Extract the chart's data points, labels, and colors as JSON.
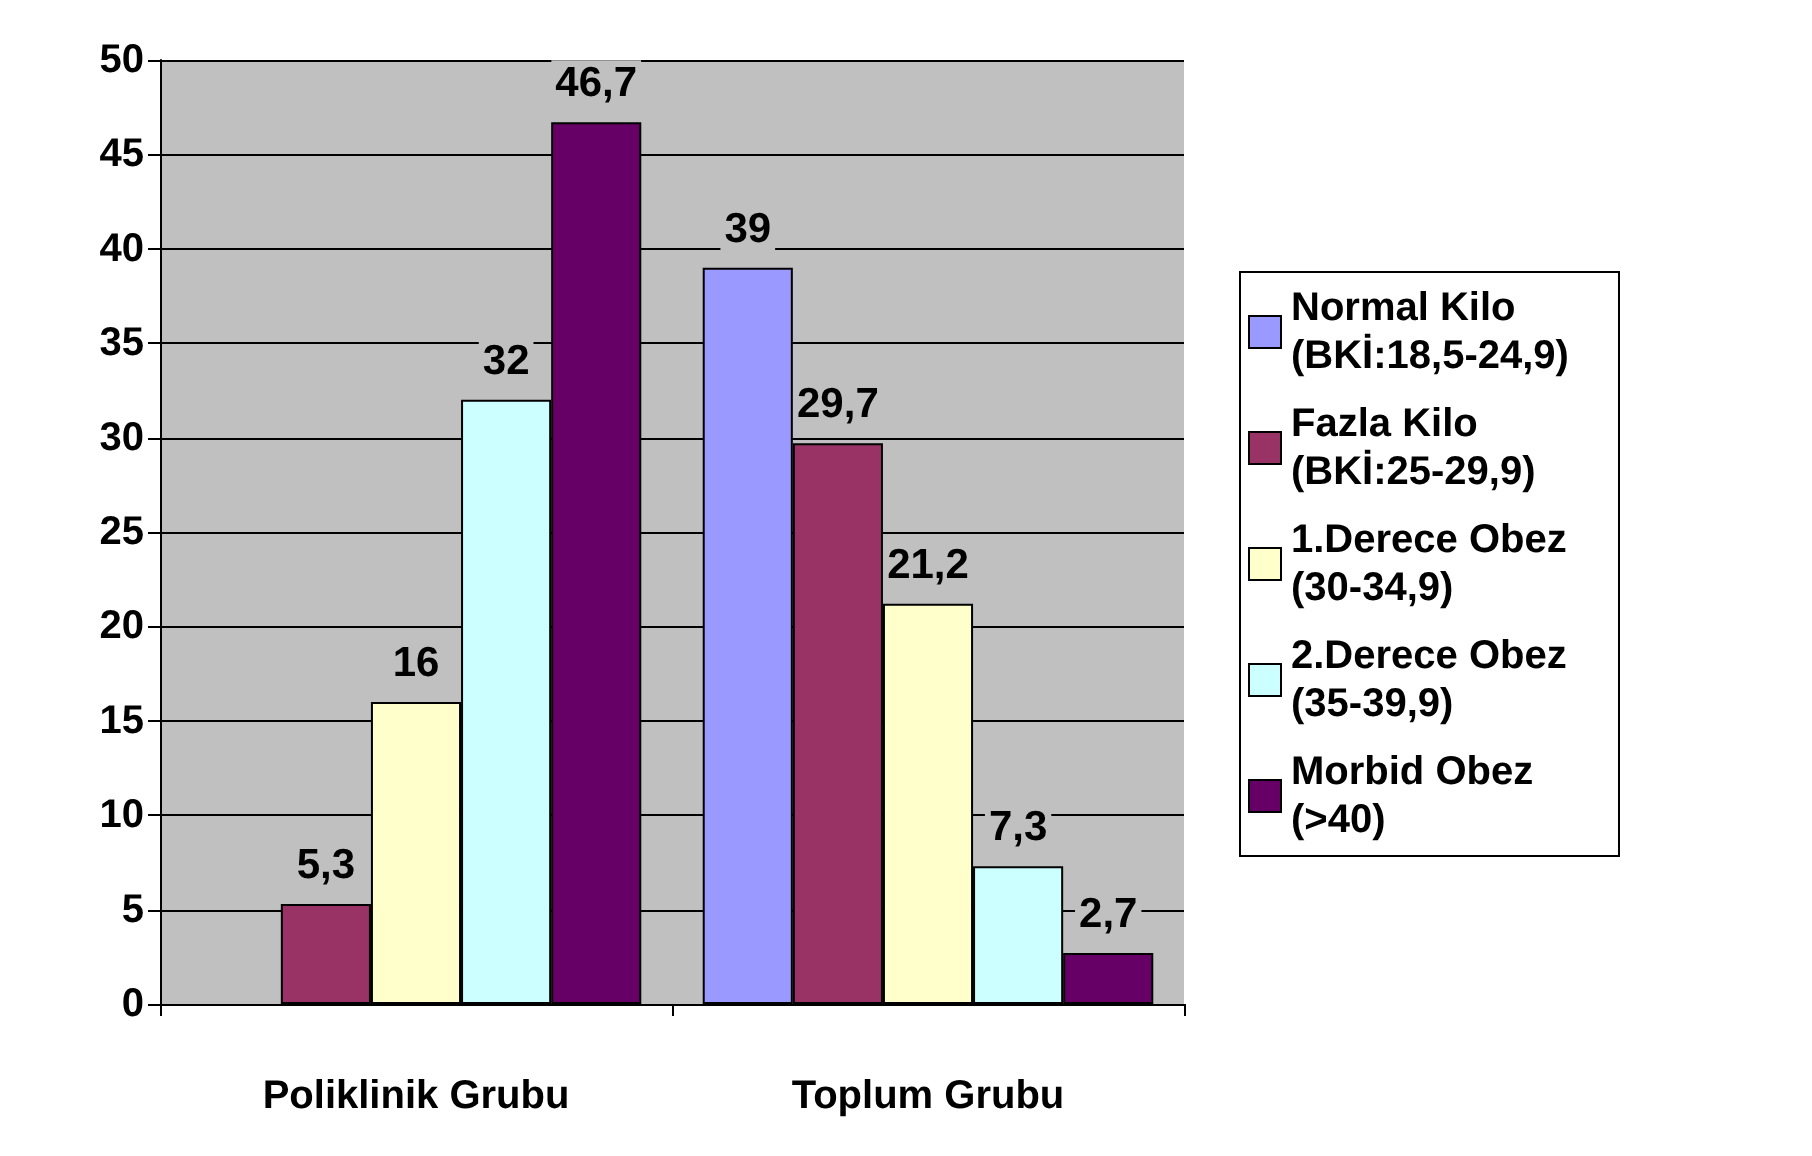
{
  "chart_data": {
    "type": "bar",
    "categories": [
      "Poliklinik Grubu",
      "Toplum Grubu"
    ],
    "series": [
      {
        "name": "Normal Kilo (BKİ:18,5-24,9)",
        "color": "#9999ff",
        "values": [
          null,
          39
        ],
        "value_labels": [
          null,
          "39"
        ]
      },
      {
        "name": "Fazla Kilo (BKİ:25-29,9)",
        "color": "#993366",
        "values": [
          5.3,
          29.7
        ],
        "value_labels": [
          "5,3",
          "29,7"
        ]
      },
      {
        "name": "1.Derece Obez (30-34,9)",
        "color": "#ffffcc",
        "values": [
          16,
          21.2
        ],
        "value_labels": [
          "16",
          "21,2"
        ]
      },
      {
        "name": "2.Derece Obez (35-39,9)",
        "color": "#ccffff",
        "values": [
          32,
          7.3
        ],
        "value_labels": [
          "32",
          "7,3"
        ]
      },
      {
        "name": "Morbid Obez (>40)",
        "color": "#660066",
        "values": [
          46.7,
          2.7
        ],
        "value_labels": [
          "46,7",
          "2,7"
        ]
      }
    ],
    "ylim": [
      0,
      50
    ],
    "yticks": [
      0,
      5,
      10,
      15,
      20,
      25,
      30,
      35,
      40,
      45,
      50
    ],
    "grid": "y",
    "legend": "right"
  }
}
